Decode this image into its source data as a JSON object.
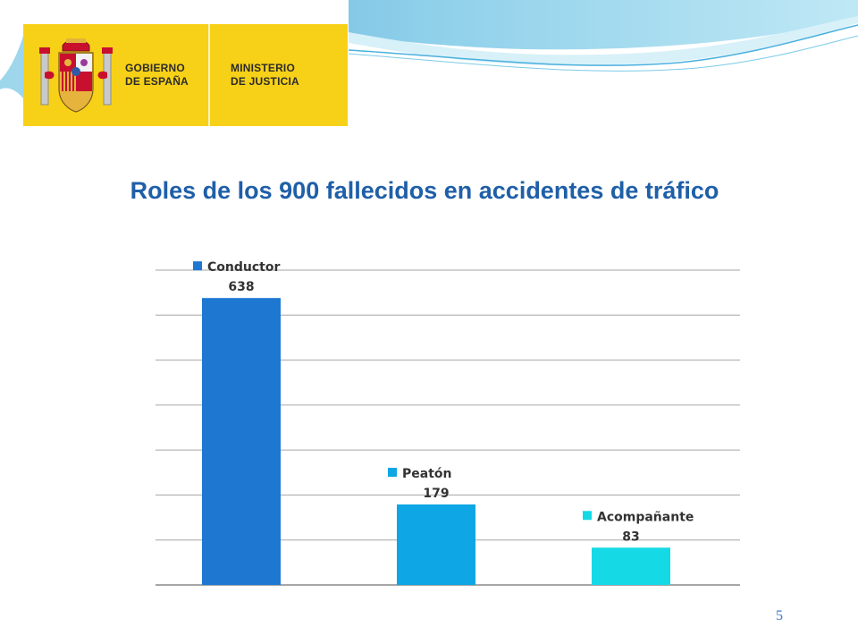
{
  "header": {
    "logo_left_lines": [
      "GOBIERNO",
      "DE ESPAÑA"
    ],
    "logo_right_lines": [
      "MINISTERIO",
      "DE JUSTICIA"
    ],
    "logo_color": "#f7d117",
    "emblem": "spain-coat-of-arms-icon"
  },
  "slide": {
    "title": "Roles de los 900 fallecidos en accidentes de tráfico",
    "page_number": "5"
  },
  "chart_data": {
    "type": "bar",
    "title": "Roles de los 900 fallecidos en accidentes de tráfico",
    "categories": [
      "Conductor",
      "Peatón",
      "Acompañante"
    ],
    "values": [
      638,
      179,
      83
    ],
    "value_labels": [
      "638",
      "179",
      "83"
    ],
    "colors": [
      "#1e78d2",
      "#0ea6e4",
      "#16d9e6"
    ],
    "xlabel": "",
    "ylabel": "",
    "ylim": [
      0,
      700
    ],
    "y_gridlines": [
      0,
      100,
      200,
      300,
      400,
      500,
      600,
      700
    ],
    "grid": true,
    "legend": "per-bar label above each bar"
  }
}
